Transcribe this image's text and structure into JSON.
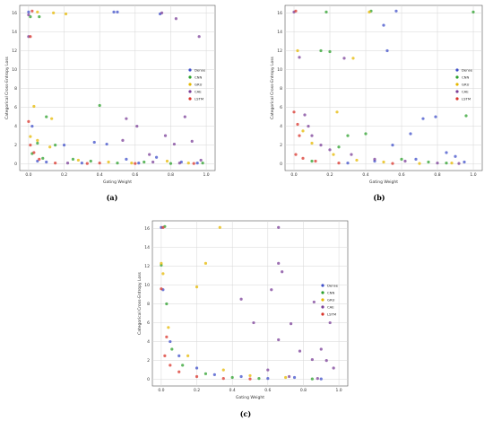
{
  "series_colors": {
    "Dense": "#3f4fc9",
    "CNN": "#2ca02c",
    "GRU": "#e5b800",
    "CAE": "#7b3f98",
    "LSTM": "#d9342b"
  },
  "chart_data": [
    {
      "panel": "(a)",
      "type": "scatter",
      "xlabel": "Gating Weight",
      "ylabel": "Categorical Cross-Entropy Loss",
      "xlim": [
        -0.05,
        1.05
      ],
      "ylim": [
        -0.7,
        16.8
      ],
      "xticks": [
        "0.0",
        "0.2",
        "0.4",
        "0.6",
        "0.8",
        "1.0"
      ],
      "yticks": [
        "0",
        "2",
        "4",
        "6",
        "8",
        "10",
        "12",
        "14",
        "16"
      ],
      "grid": true,
      "legend_position": "right",
      "series": [
        {
          "name": "Dense",
          "points": [
            [
              0.0,
              16.1
            ],
            [
              0.48,
              16.1
            ],
            [
              0.5,
              16.1
            ],
            [
              0.74,
              15.9
            ],
            [
              0.02,
              4.0
            ],
            [
              0.2,
              2.0
            ],
            [
              0.37,
              2.3
            ],
            [
              0.44,
              2.1
            ],
            [
              0.55,
              0.5
            ],
            [
              0.72,
              0.7
            ],
            [
              0.62,
              0.1
            ],
            [
              0.3,
              0.1
            ],
            [
              0.86,
              0.2
            ],
            [
              0.95,
              0.1
            ],
            [
              0.1,
              0.2
            ],
            [
              0.05,
              0.3
            ]
          ]
        },
        {
          "name": "CNN",
          "points": [
            [
              0.01,
              15.6
            ],
            [
              0.06,
              15.6
            ],
            [
              0.1,
              5.0
            ],
            [
              0.4,
              6.2
            ],
            [
              0.05,
              2.2
            ],
            [
              0.15,
              2.0
            ],
            [
              0.25,
              0.5
            ],
            [
              0.35,
              0.3
            ],
            [
              0.5,
              0.1
            ],
            [
              0.65,
              0.2
            ],
            [
              0.8,
              0.05
            ],
            [
              0.98,
              0.1
            ],
            [
              0.02,
              1.1
            ],
            [
              0.08,
              0.6
            ]
          ]
        },
        {
          "name": "GRU",
          "points": [
            [
              0.05,
              16.1
            ],
            [
              0.14,
              16.0
            ],
            [
              0.21,
              15.9
            ],
            [
              0.03,
              6.1
            ],
            [
              0.13,
              4.8
            ],
            [
              0.05,
              2.5
            ],
            [
              0.12,
              1.8
            ],
            [
              0.28,
              0.4
            ],
            [
              0.45,
              0.2
            ],
            [
              0.58,
              0.1
            ],
            [
              0.78,
              0.3
            ],
            [
              0.9,
              0.1
            ],
            [
              0.01,
              2.9
            ]
          ]
        },
        {
          "name": "CAE",
          "points": [
            [
              0.0,
              15.8
            ],
            [
              0.75,
              16.0
            ],
            [
              0.83,
              15.4
            ],
            [
              0.96,
              13.5
            ],
            [
              0.0,
              13.5
            ],
            [
              0.55,
              4.8
            ],
            [
              0.61,
              4.0
            ],
            [
              0.77,
              3.0
            ],
            [
              0.82,
              2.1
            ],
            [
              0.88,
              5.0
            ],
            [
              0.92,
              2.4
            ],
            [
              0.53,
              2.5
            ],
            [
              0.68,
              1.0
            ],
            [
              0.7,
              0.2
            ],
            [
              0.85,
              0.1
            ],
            [
              0.97,
              0.4
            ],
            [
              0.22,
              0.1
            ]
          ]
        },
        {
          "name": "LSTM",
          "points": [
            [
              0.01,
              13.5
            ],
            [
              0.02,
              16.2
            ],
            [
              0.0,
              4.5
            ],
            [
              0.01,
              2.0
            ],
            [
              0.03,
              1.2
            ],
            [
              0.06,
              0.5
            ],
            [
              0.15,
              0.1
            ],
            [
              0.33,
              0.05
            ],
            [
              0.6,
              0.05
            ],
            [
              0.4,
              0.1
            ],
            [
              0.93,
              0.05
            ]
          ]
        }
      ]
    },
    {
      "panel": "(b)",
      "type": "scatter",
      "xlabel": "Gating Weight",
      "ylabel": "Categorical Cross-Entropy Loss",
      "xlim": [
        -0.05,
        1.05
      ],
      "ylim": [
        -0.7,
        16.8
      ],
      "xticks": [
        "0.0",
        "0.2",
        "0.4",
        "0.6",
        "0.8",
        "1.0"
      ],
      "yticks": [
        "0",
        "2",
        "4",
        "6",
        "8",
        "10",
        "12",
        "14",
        "16"
      ],
      "grid": true,
      "legend_position": "right",
      "series": [
        {
          "name": "Dense",
          "points": [
            [
              0.5,
              14.7
            ],
            [
              0.52,
              12.0
            ],
            [
              0.57,
              16.2
            ],
            [
              0.79,
              5.0
            ],
            [
              0.72,
              4.8
            ],
            [
              0.65,
              3.2
            ],
            [
              0.55,
              2.0
            ],
            [
              0.85,
              1.2
            ],
            [
              0.9,
              0.8
            ],
            [
              0.68,
              0.5
            ],
            [
              0.45,
              0.3
            ],
            [
              0.95,
              0.2
            ],
            [
              0.3,
              0.1
            ]
          ]
        },
        {
          "name": "CNN",
          "points": [
            [
              1.0,
              16.1
            ],
            [
              0.43,
              16.2
            ],
            [
              0.18,
              16.1
            ],
            [
              0.15,
              12.0
            ],
            [
              0.2,
              11.9
            ],
            [
              0.3,
              3.0
            ],
            [
              0.4,
              3.2
            ],
            [
              0.25,
              1.8
            ],
            [
              0.6,
              0.5
            ],
            [
              0.75,
              0.2
            ],
            [
              0.85,
              0.1
            ],
            [
              0.96,
              5.1
            ],
            [
              0.1,
              0.3
            ]
          ]
        },
        {
          "name": "GRU",
          "points": [
            [
              0.02,
              12.0
            ],
            [
              0.33,
              11.2
            ],
            [
              0.42,
              16.1
            ],
            [
              0.24,
              5.5
            ],
            [
              0.05,
              3.5
            ],
            [
              0.1,
              2.2
            ],
            [
              0.22,
              1.0
            ],
            [
              0.35,
              0.4
            ],
            [
              0.5,
              0.2
            ],
            [
              0.7,
              0.05
            ],
            [
              0.88,
              0.1
            ]
          ]
        },
        {
          "name": "CAE",
          "points": [
            [
              0.0,
              16.1
            ],
            [
              0.03,
              11.3
            ],
            [
              0.28,
              11.2
            ],
            [
              0.06,
              5.2
            ],
            [
              0.08,
              4.0
            ],
            [
              0.1,
              3.0
            ],
            [
              0.15,
              2.0
            ],
            [
              0.2,
              1.5
            ],
            [
              0.32,
              1.0
            ],
            [
              0.45,
              0.5
            ],
            [
              0.62,
              0.3
            ],
            [
              0.8,
              0.1
            ],
            [
              0.92,
              0.05
            ]
          ]
        },
        {
          "name": "LSTM",
          "points": [
            [
              0.01,
              16.2
            ],
            [
              0.0,
              5.5
            ],
            [
              0.02,
              4.2
            ],
            [
              0.03,
              3.0
            ],
            [
              0.01,
              1.0
            ],
            [
              0.05,
              0.6
            ],
            [
              0.12,
              0.3
            ],
            [
              0.25,
              0.1
            ],
            [
              0.55,
              0.05
            ]
          ]
        }
      ]
    },
    {
      "panel": "(c)",
      "type": "scatter",
      "xlabel": "Gating Weight",
      "ylabel": "Categorical Cross-Entropy Loss",
      "xlim": [
        -0.05,
        1.05
      ],
      "ylim": [
        -0.7,
        16.8
      ],
      "xticks": [
        "0.0",
        "0.2",
        "0.4",
        "0.6",
        "0.8",
        "1.0"
      ],
      "yticks": [
        "0",
        "2",
        "4",
        "6",
        "8",
        "10",
        "12",
        "14",
        "16"
      ],
      "grid": true,
      "legend_position": "right",
      "series": [
        {
          "name": "Dense",
          "points": [
            [
              0.0,
              16.1
            ],
            [
              0.01,
              9.5
            ],
            [
              0.05,
              4.0
            ],
            [
              0.1,
              2.5
            ],
            [
              0.2,
              1.2
            ],
            [
              0.3,
              0.5
            ],
            [
              0.45,
              0.3
            ],
            [
              0.6,
              0.1
            ],
            [
              0.75,
              0.2
            ],
            [
              0.9,
              0.05
            ]
          ]
        },
        {
          "name": "CNN",
          "points": [
            [
              0.02,
              16.2
            ],
            [
              0.0,
              12.1
            ],
            [
              0.03,
              8.0
            ],
            [
              0.06,
              3.2
            ],
            [
              0.12,
              1.5
            ],
            [
              0.25,
              0.6
            ],
            [
              0.4,
              0.2
            ],
            [
              0.55,
              0.1
            ],
            [
              0.85,
              0.05
            ]
          ]
        },
        {
          "name": "GRU",
          "points": [
            [
              0.33,
              16.1
            ],
            [
              0.0,
              12.3
            ],
            [
              0.01,
              11.2
            ],
            [
              0.2,
              9.8
            ],
            [
              0.25,
              12.3
            ],
            [
              0.04,
              5.5
            ],
            [
              0.15,
              2.5
            ],
            [
              0.35,
              1.0
            ],
            [
              0.5,
              0.4
            ],
            [
              0.7,
              0.2
            ]
          ]
        },
        {
          "name": "CAE",
          "points": [
            [
              0.66,
              16.1
            ],
            [
              0.68,
              11.4
            ],
            [
              0.66,
              12.3
            ],
            [
              0.86,
              8.2
            ],
            [
              0.62,
              9.5
            ],
            [
              0.45,
              8.5
            ],
            [
              0.52,
              6.0
            ],
            [
              0.73,
              5.9
            ],
            [
              0.95,
              6.0
            ],
            [
              0.66,
              4.2
            ],
            [
              0.78,
              3.0
            ],
            [
              0.85,
              2.1
            ],
            [
              0.9,
              3.2
            ],
            [
              0.93,
              2.0
            ],
            [
              0.97,
              1.2
            ],
            [
              0.6,
              1.0
            ],
            [
              0.72,
              0.3
            ],
            [
              0.88,
              0.1
            ]
          ]
        },
        {
          "name": "LSTM",
          "points": [
            [
              0.01,
              16.1
            ],
            [
              0.0,
              9.6
            ],
            [
              0.03,
              4.5
            ],
            [
              0.02,
              2.5
            ],
            [
              0.05,
              1.5
            ],
            [
              0.1,
              0.8
            ],
            [
              0.2,
              0.3
            ],
            [
              0.35,
              0.1
            ],
            [
              0.5,
              0.05
            ]
          ]
        }
      ]
    }
  ]
}
